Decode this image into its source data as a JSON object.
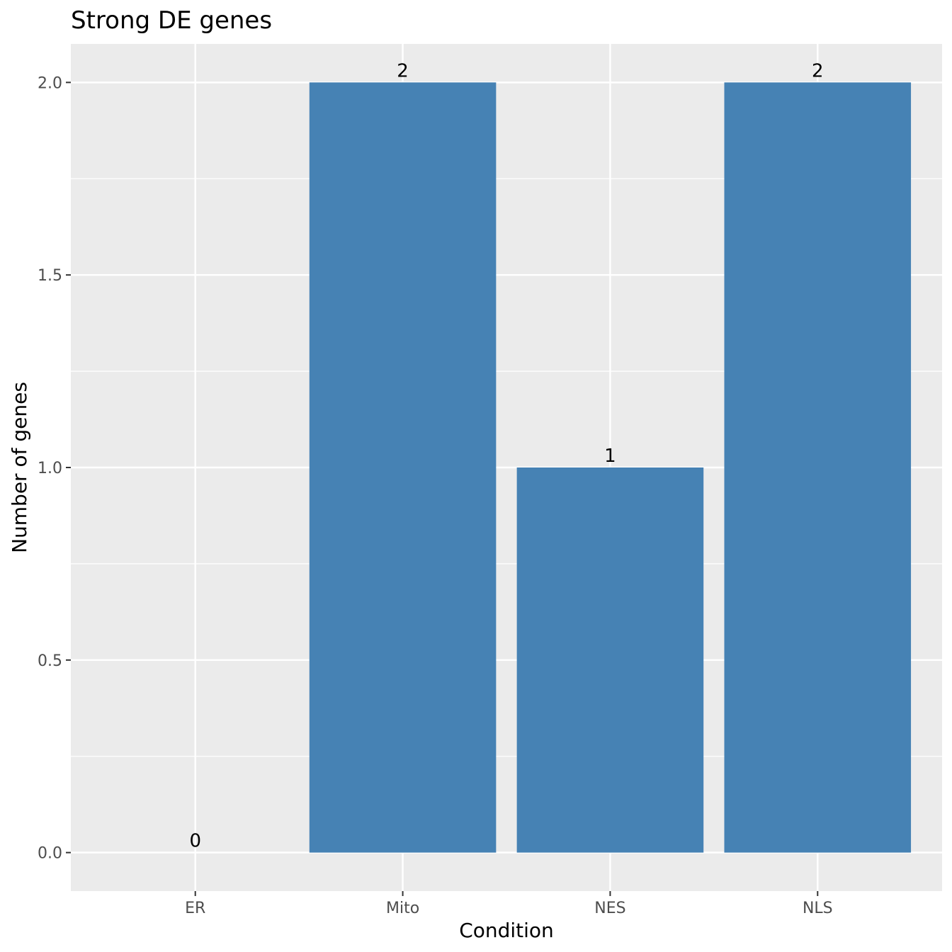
{
  "chart_data": {
    "type": "bar",
    "title": "Strong DE genes",
    "xlabel": "Condition",
    "ylabel": "Number of genes",
    "categories": [
      "ER",
      "Mito",
      "NES",
      "NLS"
    ],
    "values": [
      0,
      2,
      1,
      2
    ],
    "data_labels": [
      "0",
      "2",
      "1",
      "2"
    ],
    "ylim": [
      -0.1,
      2.1
    ],
    "y_ticks": [
      0.0,
      0.5,
      1.0,
      1.5,
      2.0
    ],
    "y_tick_labels": [
      "0.0",
      "0.5",
      "1.0",
      "1.5",
      "2.0"
    ],
    "grid": true,
    "legend": "none",
    "colors": {
      "bar": "#4682b4",
      "panel": "#ebebeb",
      "grid": "#ffffff"
    }
  }
}
